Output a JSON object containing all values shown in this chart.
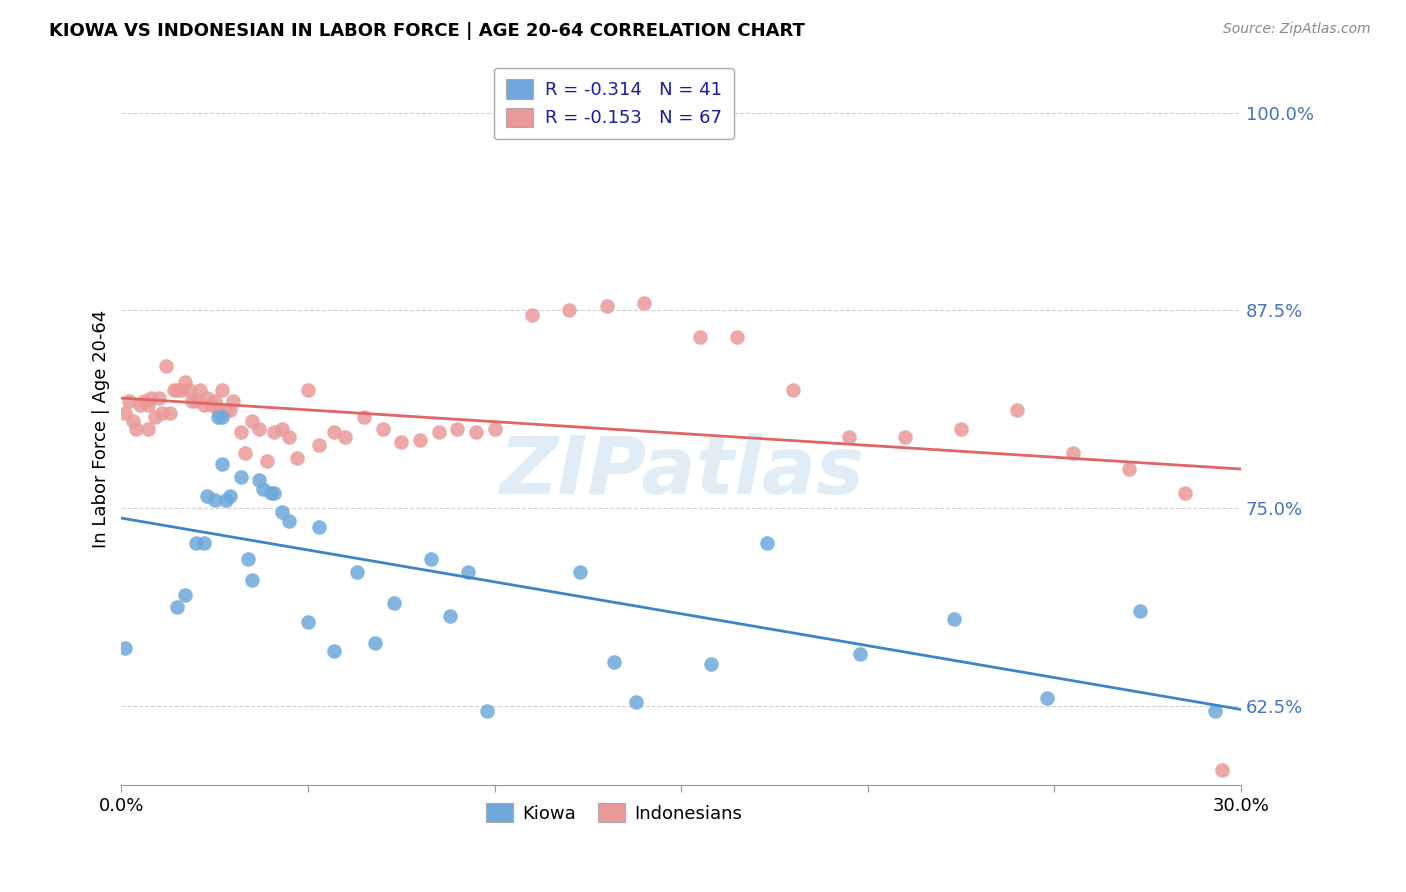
{
  "title": "KIOWA VS INDONESIAN IN LABOR FORCE | AGE 20-64 CORRELATION CHART",
  "source": "Source: ZipAtlas.com",
  "ylabel": "In Labor Force | Age 20-64",
  "xlim": [
    0.0,
    0.3
  ],
  "ylim": [
    0.575,
    1.025
  ],
  "yticks": [
    0.625,
    0.75,
    0.875,
    1.0
  ],
  "ytick_labels": [
    "62.5%",
    "75.0%",
    "87.5%",
    "100.0%"
  ],
  "xtick_positions": [
    0.0,
    0.05,
    0.1,
    0.15,
    0.2,
    0.25,
    0.3
  ],
  "xtick_labels": [
    "0.0%",
    "",
    "",
    "",
    "",
    "",
    "30.0%"
  ],
  "legend_R_kiowa": "-0.314",
  "legend_N_kiowa": "41",
  "legend_R_indonesian": "-0.153",
  "legend_N_indonesian": "67",
  "kiowa_color": "#6fa8dc",
  "indonesian_color": "#ea9999",
  "kiowa_line_color": "#3d85c8",
  "indonesian_line_color": "#e06666",
  "watermark": "ZIPatlas",
  "kiowa_x": [
    0.001,
    0.015,
    0.017,
    0.02,
    0.022,
    0.023,
    0.025,
    0.026,
    0.027,
    0.027,
    0.028,
    0.029,
    0.032,
    0.034,
    0.035,
    0.037,
    0.038,
    0.04,
    0.041,
    0.043,
    0.045,
    0.05,
    0.053,
    0.057,
    0.063,
    0.068,
    0.073,
    0.083,
    0.088,
    0.093,
    0.098,
    0.123,
    0.132,
    0.138,
    0.158,
    0.173,
    0.198,
    0.223,
    0.248,
    0.273,
    0.293
  ],
  "kiowa_y": [
    0.662,
    0.688,
    0.695,
    0.728,
    0.728,
    0.758,
    0.755,
    0.808,
    0.808,
    0.778,
    0.755,
    0.758,
    0.77,
    0.718,
    0.705,
    0.768,
    0.762,
    0.76,
    0.76,
    0.748,
    0.742,
    0.678,
    0.738,
    0.66,
    0.71,
    0.665,
    0.69,
    0.718,
    0.682,
    0.71,
    0.622,
    0.71,
    0.653,
    0.628,
    0.652,
    0.728,
    0.658,
    0.68,
    0.63,
    0.685,
    0.622
  ],
  "indonesian_x": [
    0.001,
    0.002,
    0.003,
    0.004,
    0.005,
    0.006,
    0.007,
    0.007,
    0.008,
    0.009,
    0.01,
    0.011,
    0.012,
    0.013,
    0.014,
    0.015,
    0.016,
    0.017,
    0.018,
    0.019,
    0.02,
    0.021,
    0.022,
    0.023,
    0.024,
    0.025,
    0.026,
    0.027,
    0.028,
    0.029,
    0.03,
    0.032,
    0.033,
    0.035,
    0.037,
    0.039,
    0.041,
    0.043,
    0.045,
    0.047,
    0.05,
    0.053,
    0.057,
    0.06,
    0.065,
    0.07,
    0.075,
    0.08,
    0.085,
    0.09,
    0.095,
    0.1,
    0.11,
    0.12,
    0.13,
    0.14,
    0.155,
    0.165,
    0.18,
    0.195,
    0.21,
    0.225,
    0.24,
    0.255,
    0.27,
    0.285,
    0.295
  ],
  "indonesian_y": [
    0.81,
    0.818,
    0.805,
    0.8,
    0.815,
    0.818,
    0.815,
    0.8,
    0.82,
    0.808,
    0.82,
    0.81,
    0.84,
    0.81,
    0.825,
    0.825,
    0.825,
    0.83,
    0.825,
    0.818,
    0.818,
    0.825,
    0.815,
    0.82,
    0.815,
    0.818,
    0.812,
    0.825,
    0.812,
    0.812,
    0.818,
    0.798,
    0.785,
    0.805,
    0.8,
    0.78,
    0.798,
    0.8,
    0.795,
    0.782,
    0.825,
    0.79,
    0.798,
    0.795,
    0.808,
    0.8,
    0.792,
    0.793,
    0.798,
    0.8,
    0.798,
    0.8,
    0.872,
    0.875,
    0.878,
    0.88,
    0.858,
    0.858,
    0.825,
    0.795,
    0.795,
    0.8,
    0.812,
    0.785,
    0.775,
    0.76,
    0.585
  ]
}
